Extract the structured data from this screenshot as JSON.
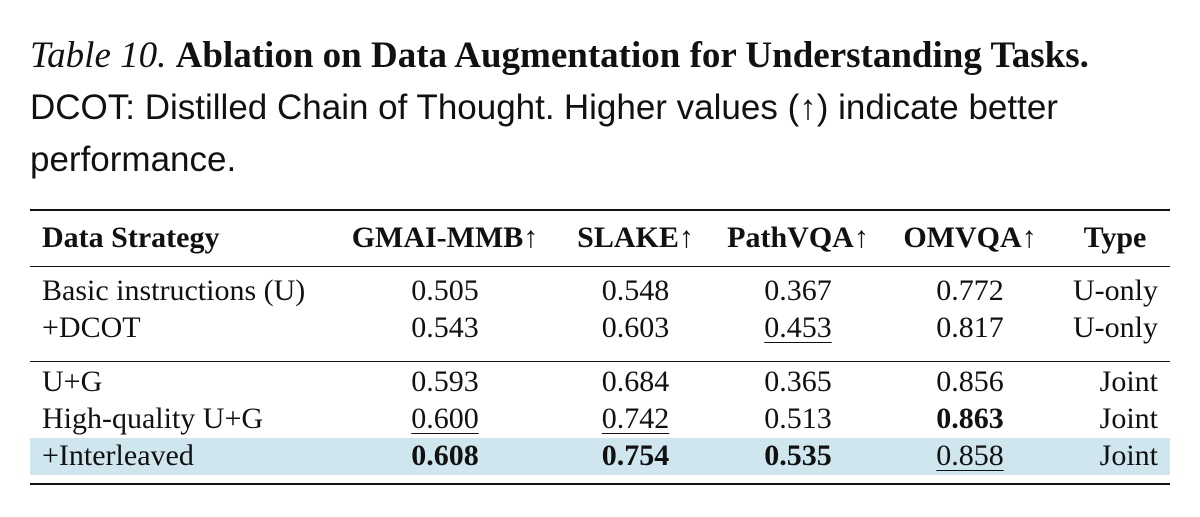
{
  "caption": {
    "label": "Table 10.",
    "title": "Ablation on Data Augmentation for Understanding Tasks.",
    "desc1": "DCOT: Distilled Chain of Thought.",
    "desc2": "Higher values (↑) indicate better performance."
  },
  "table": {
    "headers": [
      "Data Strategy",
      "GMAI-MMB↑",
      "SLAKE↑",
      "PathVQA↑",
      "OMVQA↑",
      "Type"
    ],
    "rows": [
      [
        "Basic instructions (U)",
        "0.505",
        "0.548",
        "0.367",
        "0.772",
        "U-only"
      ],
      [
        "+DCOT",
        "0.543",
        "0.603",
        "0.453",
        "0.817",
        "U-only"
      ],
      [
        "U+G",
        "0.593",
        "0.684",
        "0.365",
        "0.856",
        "Joint"
      ],
      [
        "High-quality U+G",
        "0.600",
        "0.742",
        "0.513",
        "0.863",
        "Joint"
      ],
      [
        "+Interleaved",
        "0.608",
        "0.754",
        "0.535",
        "0.858",
        "Joint"
      ]
    ],
    "highlight_color": "#cfe6ef"
  }
}
